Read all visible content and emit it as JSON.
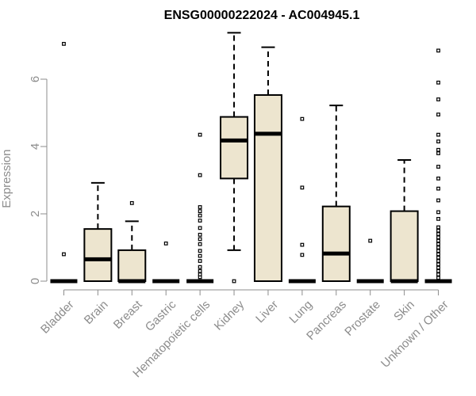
{
  "chart_data": {
    "type": "box",
    "title": "ENSG00000222024 - AC004945.1",
    "xlabel": "",
    "ylabel": "Expression",
    "ylim": [
      0,
      7.5
    ],
    "yticks": [
      0,
      2,
      4,
      6
    ],
    "box_fill": "#ede5cf",
    "box_stroke": "#000000",
    "axis_color": "#8c8c8c",
    "categories": [
      {
        "name": "Bladder",
        "q1": 0,
        "median": 0,
        "q3": 0,
        "whisker_low": 0,
        "whisker_high": 0,
        "outliers": [
          0.8,
          7.05
        ]
      },
      {
        "name": "Brain",
        "q1": 0,
        "median": 0.65,
        "q3": 1.55,
        "whisker_low": 0,
        "whisker_high": 2.92,
        "outliers": []
      },
      {
        "name": "Breast",
        "q1": 0,
        "median": 0,
        "q3": 0.92,
        "whisker_low": 0,
        "whisker_high": 1.78,
        "outliers": [
          2.32
        ]
      },
      {
        "name": "Gastric",
        "q1": 0,
        "median": 0,
        "q3": 0,
        "whisker_low": 0,
        "whisker_high": 0,
        "outliers": [
          1.12
        ]
      },
      {
        "name": "Hematopoietic cells",
        "q1": 0,
        "median": 0,
        "q3": 0,
        "whisker_low": 0,
        "whisker_high": 0,
        "outliers": [
          0.12,
          0.2,
          0.3,
          0.42,
          0.6,
          0.75,
          0.9,
          1.1,
          1.25,
          1.38,
          1.58,
          1.8,
          1.95,
          2.08,
          2.2,
          3.15,
          4.35
        ]
      },
      {
        "name": "Kidney",
        "q1": 3.05,
        "median": 4.18,
        "q3": 4.88,
        "whisker_low": 0.92,
        "whisker_high": 7.38,
        "outliers": [
          0
        ]
      },
      {
        "name": "Liver",
        "q1": 0,
        "median": 4.38,
        "q3": 5.53,
        "whisker_low": 0,
        "whisker_high": 6.95,
        "outliers": []
      },
      {
        "name": "Lung",
        "q1": 0,
        "median": 0,
        "q3": 0,
        "whisker_low": 0,
        "whisker_high": 0,
        "outliers": [
          0.78,
          1.08,
          2.78,
          4.82
        ]
      },
      {
        "name": "Pancreas",
        "q1": 0,
        "median": 0.82,
        "q3": 2.22,
        "whisker_low": 0,
        "whisker_high": 5.22,
        "outliers": []
      },
      {
        "name": "Prostate",
        "q1": 0,
        "median": 0,
        "q3": 0,
        "whisker_low": 0,
        "whisker_high": 0,
        "outliers": [
          1.2
        ]
      },
      {
        "name": "Skin",
        "q1": 0,
        "median": 0,
        "q3": 2.08,
        "whisker_low": 0,
        "whisker_high": 3.6,
        "outliers": []
      },
      {
        "name": "Unknown / Other",
        "q1": 0,
        "median": 0,
        "q3": 0,
        "whisker_low": 0,
        "whisker_high": 0,
        "outliers": [
          0.1,
          0.2,
          0.3,
          0.4,
          0.5,
          0.6,
          0.7,
          0.8,
          0.9,
          1.0,
          1.1,
          1.2,
          1.3,
          1.4,
          1.5,
          1.6,
          1.85,
          2.05,
          2.4,
          2.75,
          3.05,
          3.4,
          3.8,
          3.9,
          4.15,
          4.35,
          4.95,
          5.4,
          5.9,
          6.85
        ]
      }
    ]
  }
}
